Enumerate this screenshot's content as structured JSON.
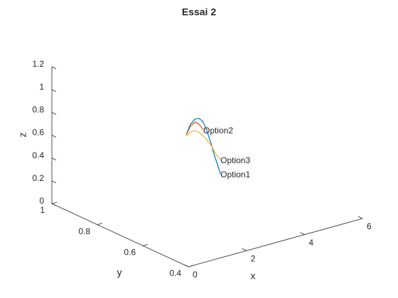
{
  "chart_data": {
    "type": "line3d",
    "title": "Essai 2",
    "xlabel": "x",
    "ylabel": "y",
    "zlabel": "z",
    "xlim": [
      0,
      6
    ],
    "xticks": [
      0,
      2,
      4,
      6
    ],
    "ylim": [
      0.4,
      1
    ],
    "yticks": [
      0.4,
      0.6,
      0.8,
      1
    ],
    "zlim": [
      0,
      1.2
    ],
    "zticks": [
      0,
      0.2,
      0.4,
      0.6,
      0.8,
      1,
      1.2
    ],
    "series": [
      {
        "name": "Option1",
        "color": "#0072bd",
        "x": [
          3.06,
          3.21,
          3.36,
          3.5,
          3.63,
          3.75,
          3.9,
          4.04,
          4.17,
          4.24
        ],
        "y": [
          0.8,
          0.8,
          0.8,
          0.8,
          0.8,
          0.8,
          0.8,
          0.8,
          0.8,
          0.8
        ],
        "z": [
          0.573,
          0.655,
          0.689,
          0.685,
          0.65,
          0.576,
          0.452,
          0.317,
          0.209,
          0.148
        ]
      },
      {
        "name": "Option2",
        "color": "#d95319",
        "x": [
          3.06,
          3.21,
          3.36,
          3.5,
          3.65
        ],
        "y": [
          0.8,
          0.8,
          0.8,
          0.8,
          0.8
        ],
        "z": [
          0.573,
          0.636,
          0.664,
          0.635,
          0.575
        ]
      },
      {
        "name": "Option3",
        "color": "#edb120",
        "x": [
          3.06,
          3.21,
          3.36,
          3.55,
          3.75,
          3.95,
          4.09,
          4.24
        ],
        "y": [
          0.8,
          0.8,
          0.8,
          0.8,
          0.8,
          0.8,
          0.8,
          0.8
        ],
        "z": [
          0.56,
          0.587,
          0.589,
          0.551,
          0.487,
          0.405,
          0.327,
          0.273
        ]
      }
    ]
  }
}
